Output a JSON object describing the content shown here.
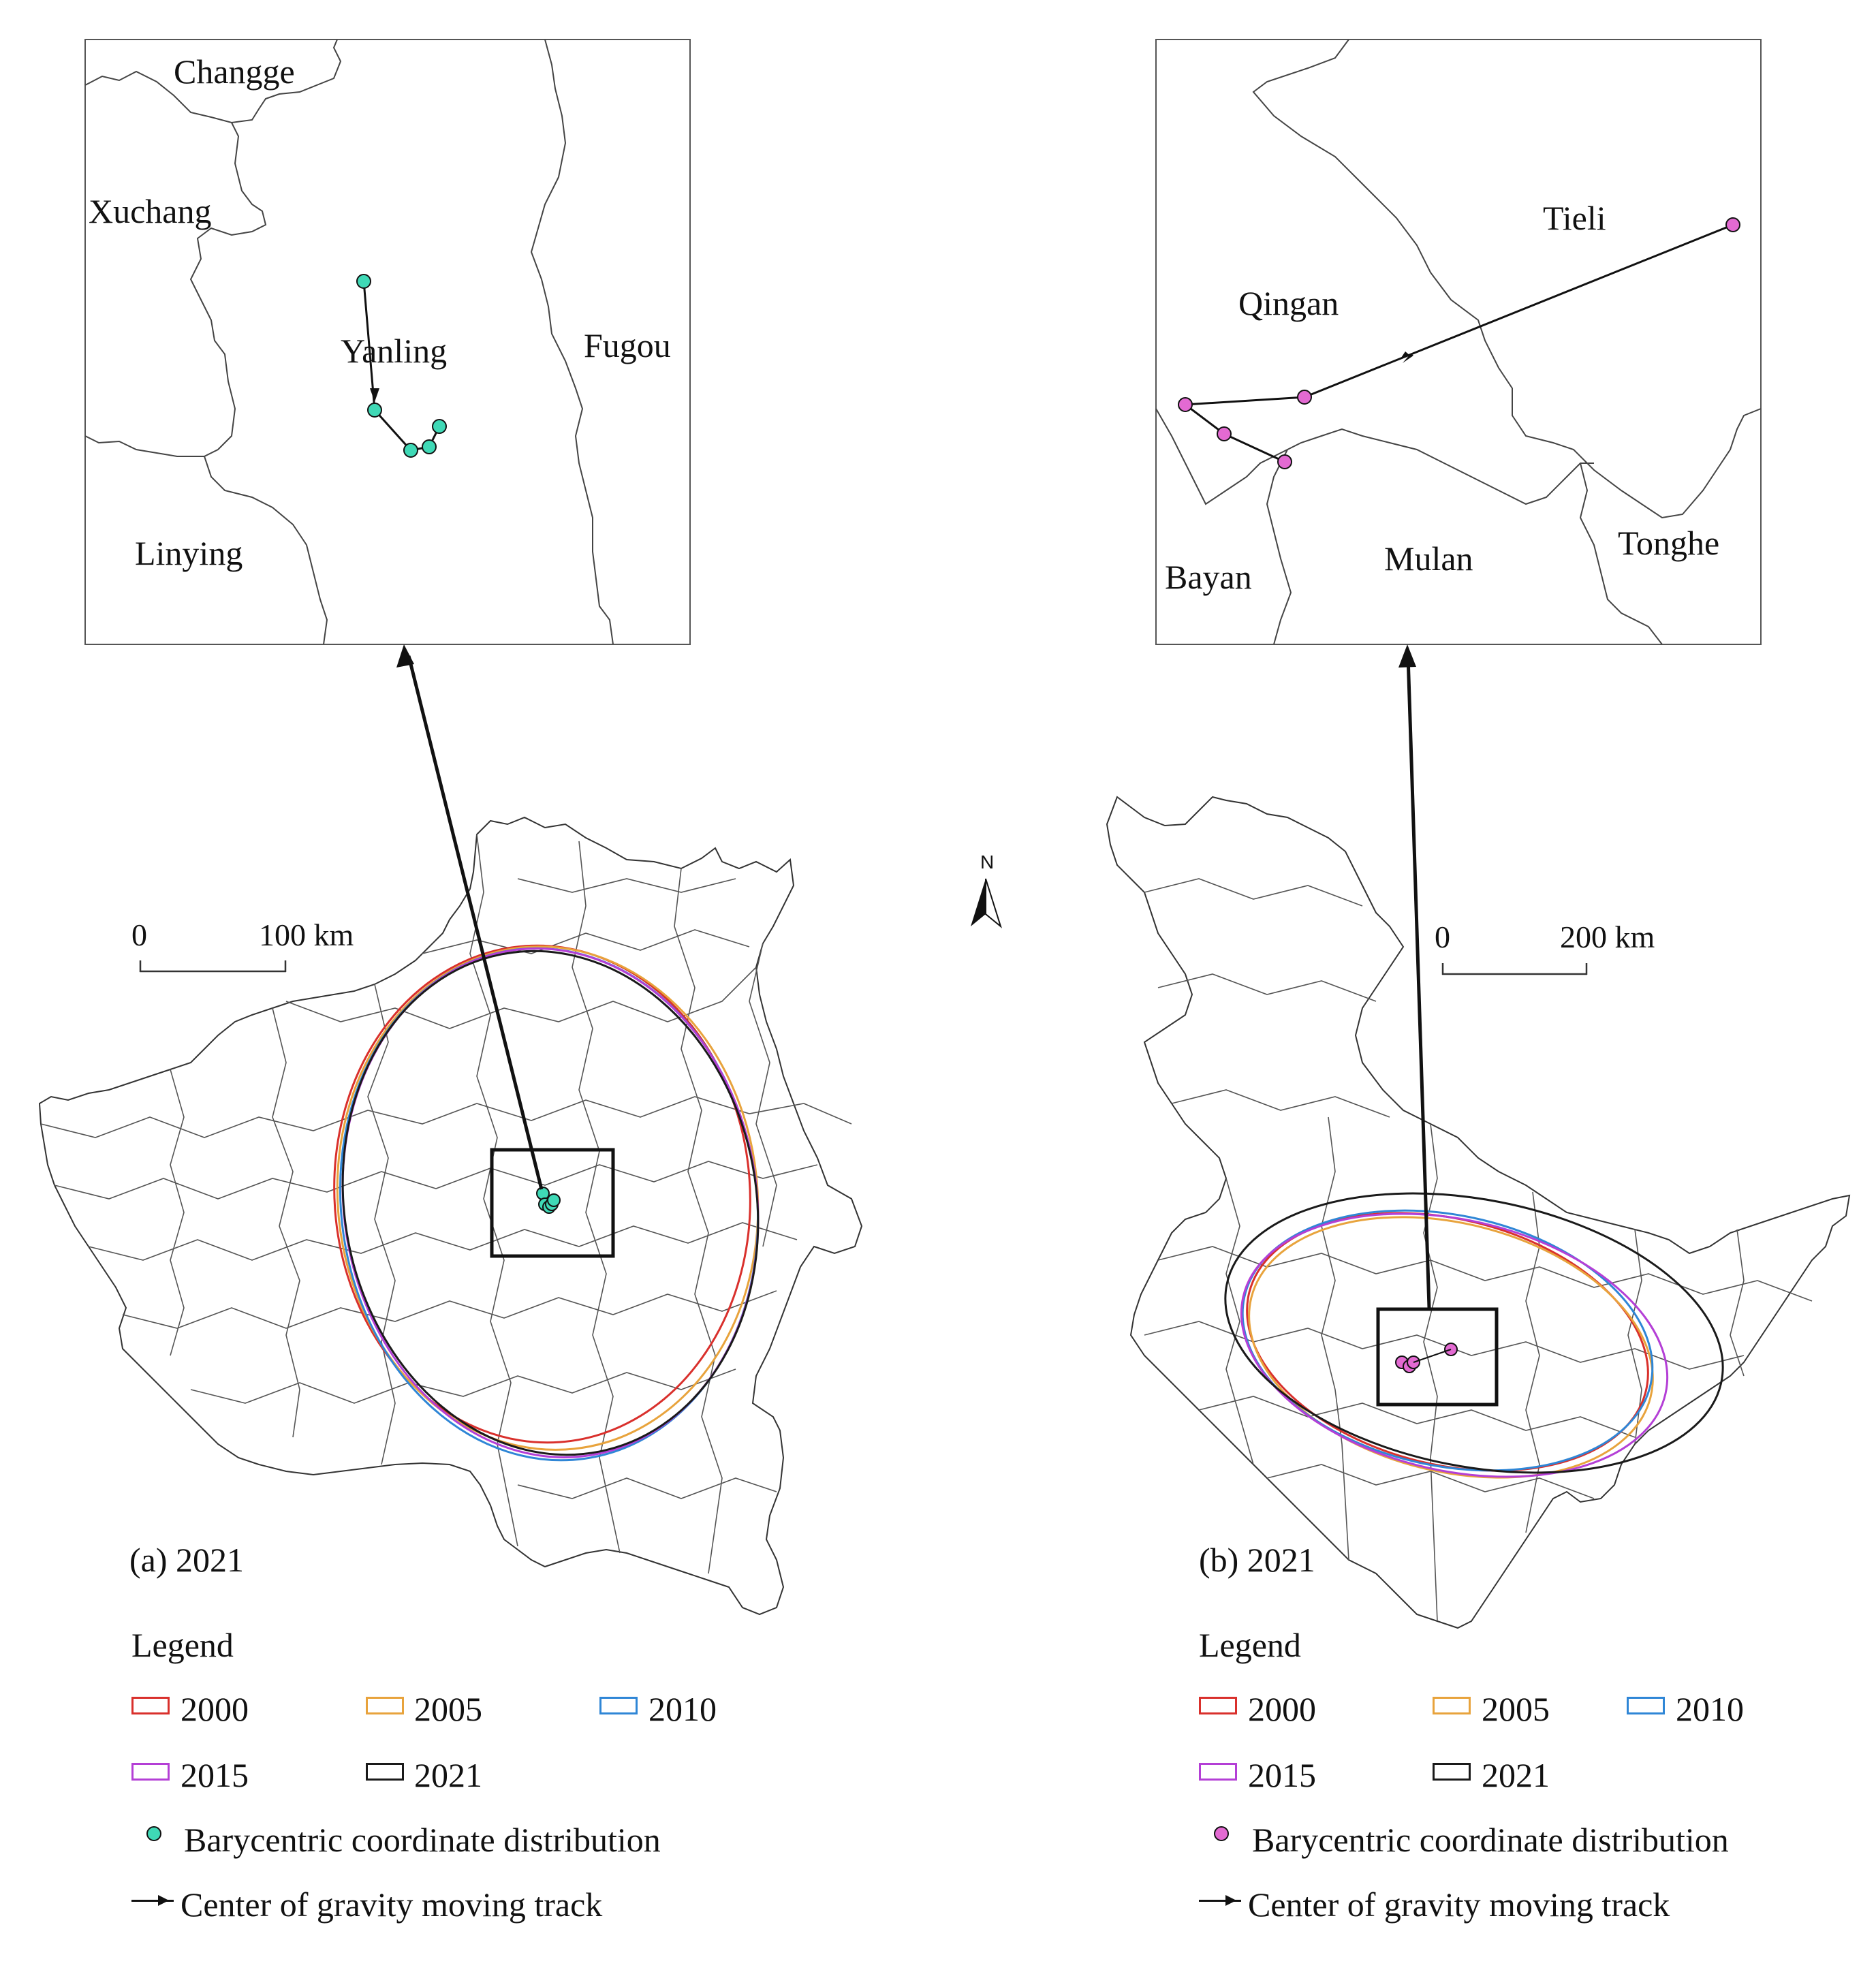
{
  "panel_a": {
    "inset_labels": [
      "Changge",
      "Xuchang",
      "Yanling",
      "Fugou",
      "Linying"
    ],
    "scale": {
      "zero": "0",
      "distance": "100 km"
    },
    "caption": "(a) 2021",
    "legend": {
      "title": "Legend",
      "years": [
        "2000",
        "2005",
        "2010",
        "2015",
        "2021"
      ],
      "point_label": "Barycentric coordinate distribution",
      "track_label": "Center of gravity moving track",
      "point_color": "#3fd9b6"
    }
  },
  "panel_b": {
    "inset_labels": [
      "Tieli",
      "Qingan",
      "Bayan",
      "Mulan",
      "Tonghe"
    ],
    "scale": {
      "zero": "0",
      "distance": "200 km"
    },
    "caption": "(b) 2021",
    "legend": {
      "title": "Legend",
      "years": [
        "2000",
        "2005",
        "2010",
        "2015",
        "2021"
      ],
      "point_label": "Barycentric coordinate distribution",
      "track_label": "Center of gravity moving track",
      "point_color": "#e36ad2"
    }
  },
  "north_label": "N",
  "year_colors": {
    "2000": "#d9302c",
    "2005": "#e8a33c",
    "2010": "#2f86d6",
    "2015": "#b43fd6",
    "2021": "#1a1a1a"
  }
}
